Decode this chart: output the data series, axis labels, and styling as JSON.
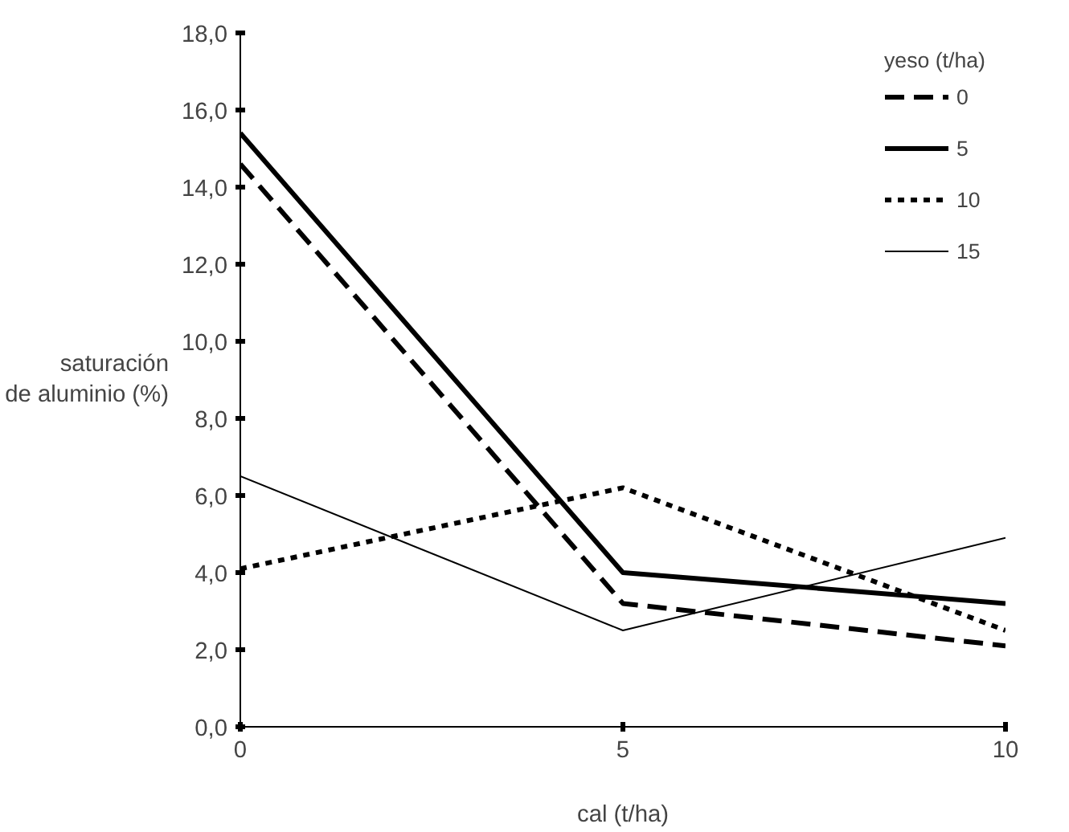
{
  "chart_data": {
    "type": "line",
    "xlabel": "cal (t/ha)",
    "ylabel": "saturación\nde aluminio (%)",
    "legend_title": "yeso (t/ha)",
    "x": [
      0,
      5,
      10
    ],
    "series": [
      {
        "name": "0",
        "color": "#000000",
        "line_style": "dashed",
        "values": [
          14.6,
          3.2,
          2.1
        ]
      },
      {
        "name": "5",
        "color": "#000000",
        "line_style": "solid",
        "values": [
          15.4,
          4.0,
          3.2
        ]
      },
      {
        "name": "10",
        "color": "#000000",
        "line_style": "dotted",
        "values": [
          4.1,
          6.2,
          2.5
        ]
      },
      {
        "name": "15",
        "color": "#000000",
        "line_style": "solid",
        "values": [
          6.5,
          2.5,
          4.9
        ]
      }
    ],
    "xlim": [
      0,
      10
    ],
    "xticks": [
      0,
      5,
      10
    ],
    "ylim": [
      0,
      18
    ],
    "yticks": [
      {
        "value": 0,
        "label": "0,0"
      },
      {
        "value": 2,
        "label": "2,0"
      },
      {
        "value": 4,
        "label": "4,0"
      },
      {
        "value": 6,
        "label": "6,0"
      },
      {
        "value": 8,
        "label": "8,0"
      },
      {
        "value": 10,
        "label": "10,0"
      },
      {
        "value": 12,
        "label": "12,0"
      },
      {
        "value": 14,
        "label": "14,0"
      },
      {
        "value": 16,
        "label": "16,0"
      },
      {
        "value": 18,
        "label": "18,0"
      }
    ],
    "grid": false,
    "legend": "top right",
    "marker": "none"
  }
}
